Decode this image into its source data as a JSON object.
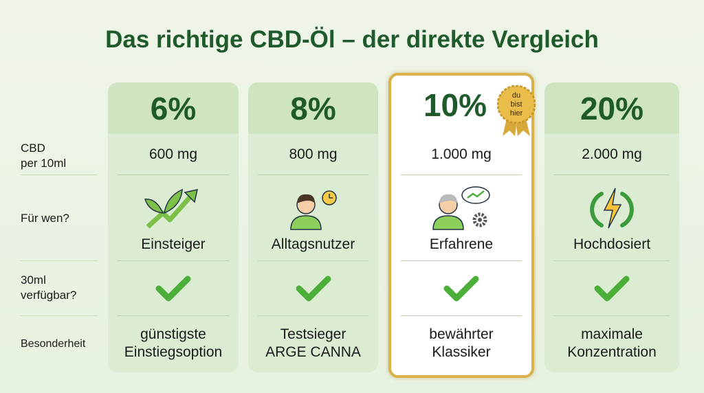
{
  "title": "Das richtige CBD-Öl – der direkte Vergleich",
  "row_labels": {
    "cbd": [
      "CBD",
      "per 10ml"
    ],
    "for_whom": "Für wen?",
    "available": [
      "30ml",
      "verfügbar?"
    ],
    "special": "Besonderheit"
  },
  "columns": [
    {
      "percent": "6%",
      "mg": "600 mg",
      "icon": "leaf-growth-arrow-icon",
      "audience": "Einsteiger",
      "available": true,
      "special": [
        "günstigste",
        "Einstiegsoption"
      ]
    },
    {
      "percent": "8%",
      "mg": "800 mg",
      "icon": "person-clock-icon",
      "audience": "Alltagsnutzer",
      "available": true,
      "special": [
        "Testsieger",
        "ARGE CANNA"
      ]
    },
    {
      "percent": "10%",
      "mg": "1.000 mg",
      "icon": "senior-person-thought-gear-icon",
      "audience": "Erfahrene",
      "available": true,
      "special": [
        "bewährter",
        "Klassiker"
      ],
      "highlighted": true,
      "badge": [
        "du",
        "bist",
        "hier"
      ]
    },
    {
      "percent": "20%",
      "mg": "2.000 mg",
      "icon": "lightning-power-icon",
      "audience": "Hochdosiert",
      "available": true,
      "special": [
        "maximale",
        "Konzentration"
      ]
    }
  ],
  "colors": {
    "title": "#1f5a2c",
    "check": "#4caf3a",
    "highlight_border": "#d9b24a",
    "background": "#eef5e8"
  }
}
